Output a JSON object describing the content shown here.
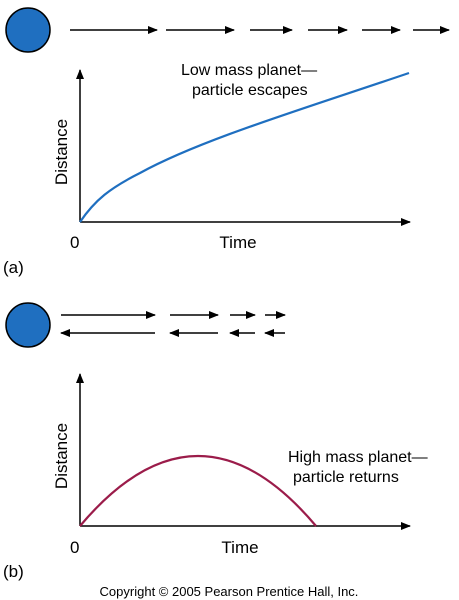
{
  "panel_a": {
    "tag": "(a)",
    "origin_label": "0",
    "x_axis_label": "Time",
    "y_axis_label": "Distance",
    "caption_line1": "Low mass planet—",
    "caption_line2": "particle escapes",
    "curve_color": "#1f6fc0",
    "planet_color": "#1f6fc0",
    "description": "distance increases monotonically with time"
  },
  "panel_b": {
    "tag": "(b)",
    "origin_label": "0",
    "x_axis_label": "Time",
    "y_axis_label": "Distance",
    "caption_line1": "High mass planet—",
    "caption_line2": "particle returns",
    "curve_color": "#9b1c4a",
    "planet_color": "#1f6fc0",
    "description": "distance rises then falls back to zero"
  },
  "copyright": "Copyright © 2005 Pearson Prentice Hall, Inc."
}
